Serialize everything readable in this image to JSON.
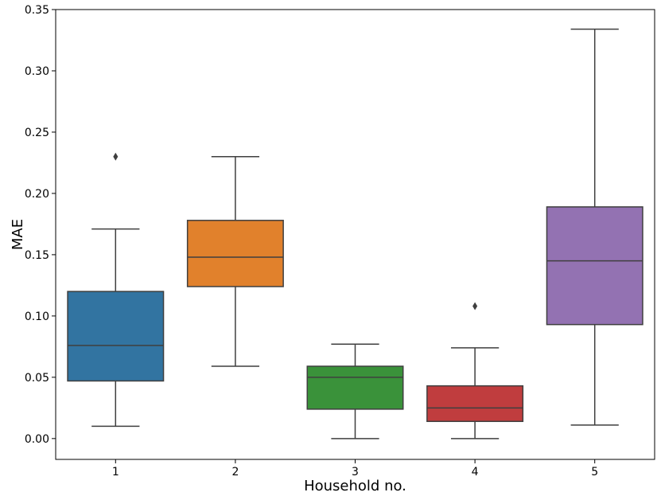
{
  "chart_data": {
    "type": "box",
    "xlabel": "Household no.",
    "ylabel": "MAE",
    "ylim": [
      -0.017,
      0.35
    ],
    "yticks": [
      0.0,
      0.05,
      0.1,
      0.15,
      0.2,
      0.25,
      0.3,
      0.35
    ],
    "ytick_labels": [
      "0.00",
      "0.05",
      "0.10",
      "0.15",
      "0.20",
      "0.25",
      "0.30",
      "0.35"
    ],
    "categories": [
      "1",
      "2",
      "3",
      "4",
      "5"
    ],
    "boxes": [
      {
        "label": "1",
        "whisker_low": 0.01,
        "q1": 0.047,
        "median": 0.076,
        "q3": 0.12,
        "whisker_high": 0.171,
        "outliers": [
          0.23
        ],
        "color": "#3274a1"
      },
      {
        "label": "2",
        "whisker_low": 0.059,
        "q1": 0.124,
        "median": 0.148,
        "q3": 0.178,
        "whisker_high": 0.23,
        "outliers": [],
        "color": "#e1812c"
      },
      {
        "label": "3",
        "whisker_low": 0.0,
        "q1": 0.024,
        "median": 0.05,
        "q3": 0.059,
        "whisker_high": 0.077,
        "outliers": [],
        "color": "#3a923a"
      },
      {
        "label": "4",
        "whisker_low": 0.0,
        "q1": 0.014,
        "median": 0.025,
        "q3": 0.043,
        "whisker_high": 0.074,
        "outliers": [
          0.108
        ],
        "color": "#c03d3e"
      },
      {
        "label": "5",
        "whisker_low": 0.011,
        "q1": 0.093,
        "median": 0.145,
        "q3": 0.189,
        "whisker_high": 0.334,
        "outliers": [],
        "color": "#9372b2"
      }
    ],
    "line_color": "#3f3f3f"
  }
}
